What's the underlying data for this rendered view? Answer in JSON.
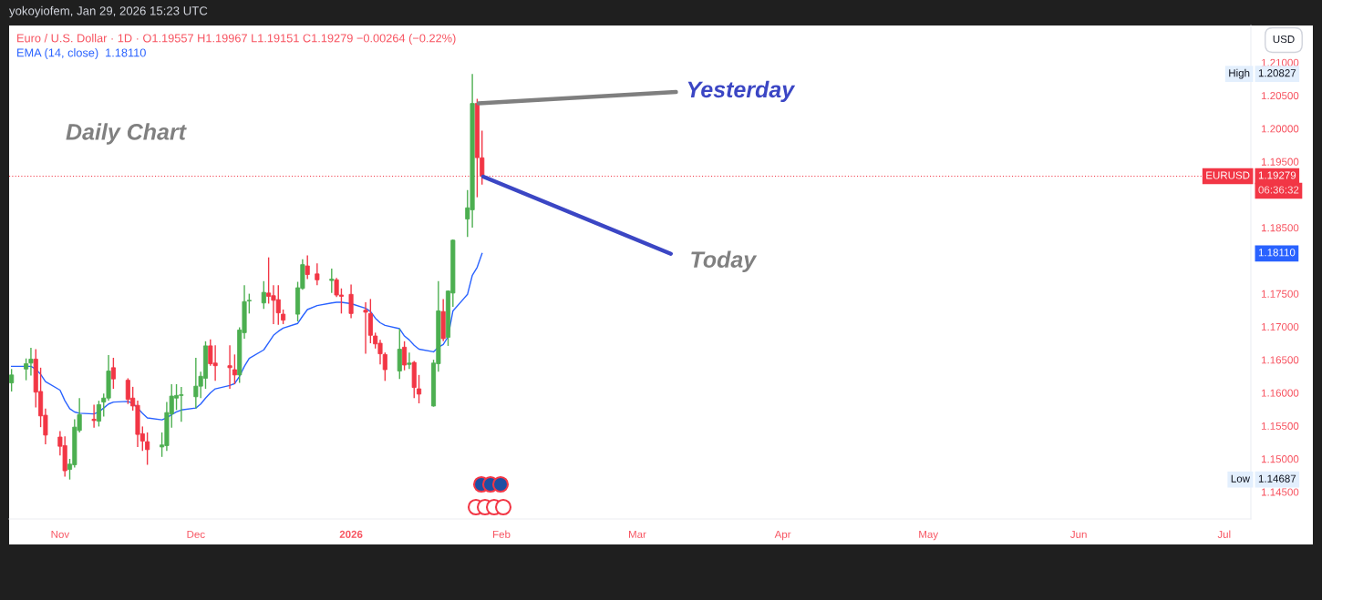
{
  "chart_data": {
    "type": "candlestick",
    "title": "Euro / U.S. Dollar · 1D · O1.19557 H1.19967 L1.19151 C1.19279 −0.00264 (−0.22%)",
    "ylabel": "USD",
    "x": [
      "2025-10-24",
      "2025-10-27",
      "2025-10-28",
      "2025-10-29",
      "2025-10-30",
      "2025-10-31",
      "2025-11-03",
      "2025-11-04",
      "2025-11-05",
      "2025-11-06",
      "2025-11-07",
      "2025-11-10",
      "2025-11-11",
      "2025-11-12",
      "2025-11-13",
      "2025-11-14",
      "2025-11-17",
      "2025-11-18",
      "2025-11-19",
      "2025-11-20",
      "2025-11-21",
      "2025-11-24",
      "2025-11-25",
      "2025-11-26",
      "2025-11-27",
      "2025-11-28",
      "2025-12-01",
      "2025-12-02",
      "2025-12-03",
      "2025-12-04",
      "2025-12-05",
      "2025-12-08",
      "2025-12-09",
      "2025-12-10",
      "2025-12-11",
      "2025-12-12",
      "2025-12-15",
      "2025-12-16",
      "2025-12-17",
      "2025-12-18",
      "2025-12-19",
      "2025-12-22",
      "2025-12-23",
      "2025-12-24",
      "2025-12-26",
      "2025-12-29",
      "2025-12-30",
      "2025-12-31",
      "2026-01-02",
      "2026-01-05",
      "2026-01-06",
      "2026-01-07",
      "2026-01-08",
      "2026-01-09",
      "2026-01-12",
      "2026-01-13",
      "2026-01-14",
      "2026-01-15",
      "2026-01-16",
      "2026-01-19",
      "2026-01-20",
      "2026-01-21",
      "2026-01-22",
      "2026-01-23",
      "2026-01-26",
      "2026-01-27",
      "2026-01-28",
      "2026-01-29"
    ],
    "ohlc": [
      [
        1.1615,
        1.1636,
        1.1602,
        1.1627
      ],
      [
        1.1636,
        1.1652,
        1.1619,
        1.1644
      ],
      [
        1.1645,
        1.1668,
        1.1626,
        1.1651
      ],
      [
        1.1651,
        1.1666,
        1.1578,
        1.1601
      ],
      [
        1.1602,
        1.1638,
        1.1548,
        1.1565
      ],
      [
        1.1566,
        1.1576,
        1.1522,
        1.1536
      ],
      [
        1.1533,
        1.1542,
        1.1505,
        1.1519
      ],
      [
        1.152,
        1.1534,
        1.1473,
        1.1482
      ],
      [
        1.1484,
        1.15,
        1.14687,
        1.1492
      ],
      [
        1.1491,
        1.156,
        1.1487,
        1.1548
      ],
      [
        1.1543,
        1.1592,
        1.154,
        1.1567
      ],
      [
        1.156,
        1.1582,
        1.1547,
        1.1558
      ],
      [
        1.1557,
        1.1588,
        1.1549,
        1.1582
      ],
      [
        1.1586,
        1.1599,
        1.1564,
        1.1592
      ],
      [
        1.1592,
        1.1657,
        1.1588,
        1.1633
      ],
      [
        1.1638,
        1.1653,
        1.1606,
        1.1621
      ],
      [
        1.1619,
        1.1622,
        1.1583,
        1.159
      ],
      [
        1.1592,
        1.1609,
        1.1573,
        1.158
      ],
      [
        1.1581,
        1.1588,
        1.1518,
        1.1537
      ],
      [
        1.1538,
        1.1549,
        1.1512,
        1.1527
      ],
      [
        1.1526,
        1.154,
        1.1491,
        1.1514
      ],
      [
        1.1518,
        1.154,
        1.1503,
        1.1521
      ],
      [
        1.152,
        1.1586,
        1.1512,
        1.157
      ],
      [
        1.1568,
        1.1613,
        1.1547,
        1.1595
      ],
      [
        1.1592,
        1.1613,
        1.1574,
        1.1596
      ],
      [
        1.1596,
        1.1609,
        1.1556,
        1.1597
      ],
      [
        1.1594,
        1.1653,
        1.1576,
        1.161
      ],
      [
        1.161,
        1.1632,
        1.1592,
        1.1625
      ],
      [
        1.1622,
        1.1678,
        1.1606,
        1.1671
      ],
      [
        1.1671,
        1.1681,
        1.1641,
        1.1644
      ],
      [
        1.1645,
        1.1672,
        1.1618,
        1.1641
      ],
      [
        1.1641,
        1.1672,
        1.1606,
        1.1638
      ],
      [
        1.1635,
        1.1658,
        1.1613,
        1.1627
      ],
      [
        1.1627,
        1.1699,
        1.1615,
        1.1695
      ],
      [
        1.1691,
        1.1763,
        1.1682,
        1.1738
      ],
      [
        1.1739,
        1.175,
        1.172,
        1.174
      ],
      [
        1.1736,
        1.1769,
        1.1727,
        1.1752
      ],
      [
        1.1751,
        1.1805,
        1.1735,
        1.1746
      ],
      [
        1.1747,
        1.1763,
        1.1704,
        1.174
      ],
      [
        1.1741,
        1.1763,
        1.1703,
        1.1721
      ],
      [
        1.1719,
        1.1726,
        1.1704,
        1.171
      ],
      [
        1.1719,
        1.1768,
        1.1708,
        1.1759
      ],
      [
        1.1758,
        1.1802,
        1.1756,
        1.1794
      ],
      [
        1.1792,
        1.1808,
        1.1772,
        1.1779
      ],
      [
        1.178,
        1.1796,
        1.1763,
        1.1771
      ],
      [
        1.177,
        1.1788,
        1.1751,
        1.1772
      ],
      [
        1.1771,
        1.1774,
        1.1745,
        1.1748
      ],
      [
        1.1748,
        1.1758,
        1.172,
        1.1746
      ],
      [
        1.1749,
        1.1764,
        1.1713,
        1.172
      ],
      [
        1.1725,
        1.1737,
        1.1659,
        1.1722
      ],
      [
        1.172,
        1.1742,
        1.1675,
        1.1687
      ],
      [
        1.1686,
        1.1691,
        1.1667,
        1.1674
      ],
      [
        1.1675,
        1.168,
        1.1643,
        1.1659
      ],
      [
        1.1658,
        1.1661,
        1.1618,
        1.1635
      ],
      [
        1.1633,
        1.1697,
        1.1621,
        1.1666
      ],
      [
        1.1669,
        1.1678,
        1.1634,
        1.1642
      ],
      [
        1.1643,
        1.1661,
        1.1636,
        1.1645
      ],
      [
        1.1646,
        1.1648,
        1.1592,
        1.1608
      ],
      [
        1.1606,
        1.1627,
        1.1584,
        1.1598
      ],
      [
        1.158,
        1.165,
        1.1579,
        1.1645
      ],
      [
        1.1644,
        1.1769,
        1.1632,
        1.1724
      ],
      [
        1.1723,
        1.1742,
        1.1678,
        1.1682
      ],
      [
        1.1684,
        1.1755,
        1.1671,
        1.1754
      ],
      [
        1.1751,
        1.1832,
        1.173,
        1.1831
      ],
      [
        1.1863,
        1.1907,
        1.1836,
        1.188
      ],
      [
        1.1877,
        1.20827,
        1.185,
        1.2038
      ],
      [
        1.2038,
        1.2045,
        1.1896,
        1.1956
      ],
      [
        1.19557,
        1.19967,
        1.19151,
        1.19279
      ]
    ],
    "colors": [
      "#4caf50",
      "#4caf50",
      "#4caf50",
      "#f23645",
      "#f23645",
      "#f23645",
      "#f23645",
      "#f23645",
      "#4caf50",
      "#4caf50",
      "#4caf50",
      "#f23645",
      "#4caf50",
      "#4caf50",
      "#4caf50",
      "#f23645",
      "#f23645",
      "#f23645",
      "#f23645",
      "#f23645",
      "#f23645",
      "#4caf50",
      "#4caf50",
      "#4caf50",
      "#4caf50",
      "#4caf50",
      "#4caf50",
      "#4caf50",
      "#4caf50",
      "#f23645",
      "#f23645",
      "#f23645",
      "#f23645",
      "#4caf50",
      "#4caf50",
      "#4caf50",
      "#4caf50",
      "#f23645",
      "#f23645",
      "#f23645",
      "#f23645",
      "#4caf50",
      "#4caf50",
      "#f23645",
      "#f23645",
      "#4caf50",
      "#f23645",
      "#f23645",
      "#f23645",
      "#f23645",
      "#f23645",
      "#f23645",
      "#f23645",
      "#f23645",
      "#4caf50",
      "#f23645",
      "#4caf50",
      "#f23645",
      "#f23645",
      "#4caf50",
      "#4caf50",
      "#f23645",
      "#4caf50",
      "#4caf50",
      "#4caf50",
      "#4caf50",
      "#f23645",
      "#f23645"
    ],
    "series": [
      {
        "name": "EMA (14, close)",
        "type": "line",
        "color": "#2962ff",
        "values": [
          1.164,
          1.164,
          1.164,
          1.1636,
          1.1628,
          1.1617,
          1.1604,
          1.1588,
          1.1576,
          1.1571,
          1.1569,
          1.1568,
          1.1571,
          1.1577,
          1.1583,
          1.1586,
          1.1587,
          1.1584,
          1.1577,
          1.1569,
          1.1562,
          1.1559,
          1.1562,
          1.1567,
          1.1571,
          1.1574,
          1.1577,
          1.1583,
          1.1592,
          1.16,
          1.1606,
          1.1611,
          1.1614,
          1.1625,
          1.164,
          1.1652,
          1.1665,
          1.1676,
          1.1687,
          1.1693,
          1.1698,
          1.1705,
          1.1716,
          1.1726,
          1.1732,
          1.1736,
          1.1737,
          1.1737,
          1.1735,
          1.1728,
          1.1723,
          1.1713,
          1.1706,
          1.1702,
          1.1697,
          1.1686,
          1.168,
          1.1672,
          1.1666,
          1.1662,
          1.1669,
          1.1673,
          1.1685,
          1.1724,
          1.1749,
          1.1778,
          1.179,
          1.1811
        ]
      }
    ],
    "xlim": [
      "2025-10-23T12:00",
      "2026-07-06T12:00"
    ],
    "xticks": [
      {
        "value": "2025-11-03",
        "label": "Nov"
      },
      {
        "value": "2025-12-01",
        "label": "Dec"
      },
      {
        "value": "2026-01-02",
        "label": "2026"
      },
      {
        "value": "2026-02-02",
        "label": "Feb"
      },
      {
        "value": "2026-03-02",
        "label": "Mar"
      },
      {
        "value": "2026-04-01",
        "label": "Apr"
      },
      {
        "value": "2026-05-01",
        "label": "May"
      },
      {
        "value": "2026-06-01",
        "label": "Jun"
      },
      {
        "value": "2026-07-01",
        "label": "Jul"
      }
    ],
    "ylim": [
      1.1409,
      1.2156
    ],
    "yticks": [
      {
        "value": 1.145,
        "label": "1.14500"
      },
      {
        "value": 1.15,
        "label": "1.15000"
      },
      {
        "value": 1.155,
        "label": "1.15500"
      },
      {
        "value": 1.16,
        "label": "1.16000"
      },
      {
        "value": 1.165,
        "label": "1.16500"
      },
      {
        "value": 1.17,
        "label": "1.17000"
      },
      {
        "value": 1.175,
        "label": "1.17500"
      },
      {
        "value": 1.185,
        "label": "1.18500"
      },
      {
        "value": 1.195,
        "label": "1.19500"
      },
      {
        "value": 1.2,
        "label": "1.20000"
      },
      {
        "value": 1.205,
        "label": "1.20500"
      },
      {
        "value": 1.21,
        "label": "1.21000"
      }
    ],
    "legend": "top left",
    "ref_lines": [
      {
        "axis": "y",
        "value": 1.19279,
        "label": "EURUSD",
        "color": "#f23645",
        "line_style": "dotted"
      }
    ],
    "annotations": [
      "yokoyiofem, Jan 29, 2026 15:23 UTC",
      "Daily Chart",
      {
        "text": "Yesterday",
        "x": "2026-01-28",
        "y": 1.2038
      },
      {
        "text": "Today",
        "x": "2026-01-29",
        "y": 1.19279
      },
      {
        "text": "High",
        "y": 1.20827
      },
      "1.20827",
      {
        "text": "Low",
        "y": 1.14687
      },
      "1.14687",
      "1.19279",
      "06:36:32",
      "1.18110",
      "1.18110"
    ]
  }
}
